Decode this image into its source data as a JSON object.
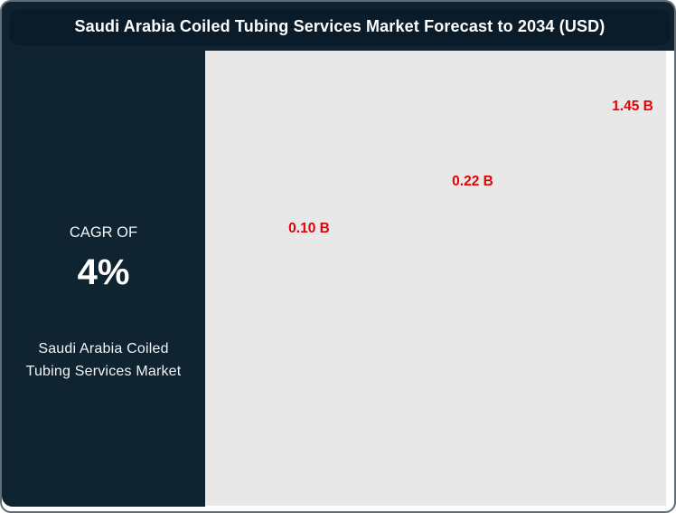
{
  "title": "Saudi Arabia Coiled Tubing Services Market Forecast to 2034 (USD)",
  "sidebar": {
    "cagr_label": "CAGR OF",
    "cagr_value": "4%",
    "market_line1": "Saudi Arabia Coiled",
    "market_line2": "Tubing Services Market"
  },
  "colors": {
    "panel_dark": "#0f2330",
    "titlebar_dark": "#0a1c29",
    "plot_background": "#e8e8e9",
    "data_label_red": "#e60004",
    "text_white": "#ffffff"
  },
  "chart_data": {
    "type": "scatter",
    "title": "Saudi Arabia Coiled Tubing Services Market Forecast to 2034 (USD)",
    "value_unit": "B",
    "points": [
      {
        "label": "0.10 B",
        "value": 0.1
      },
      {
        "label": "0.22 B",
        "value": 0.22
      },
      {
        "label": "1.45 B",
        "value": 1.45
      }
    ],
    "axes_visible": false,
    "grid": false,
    "legend": false
  }
}
